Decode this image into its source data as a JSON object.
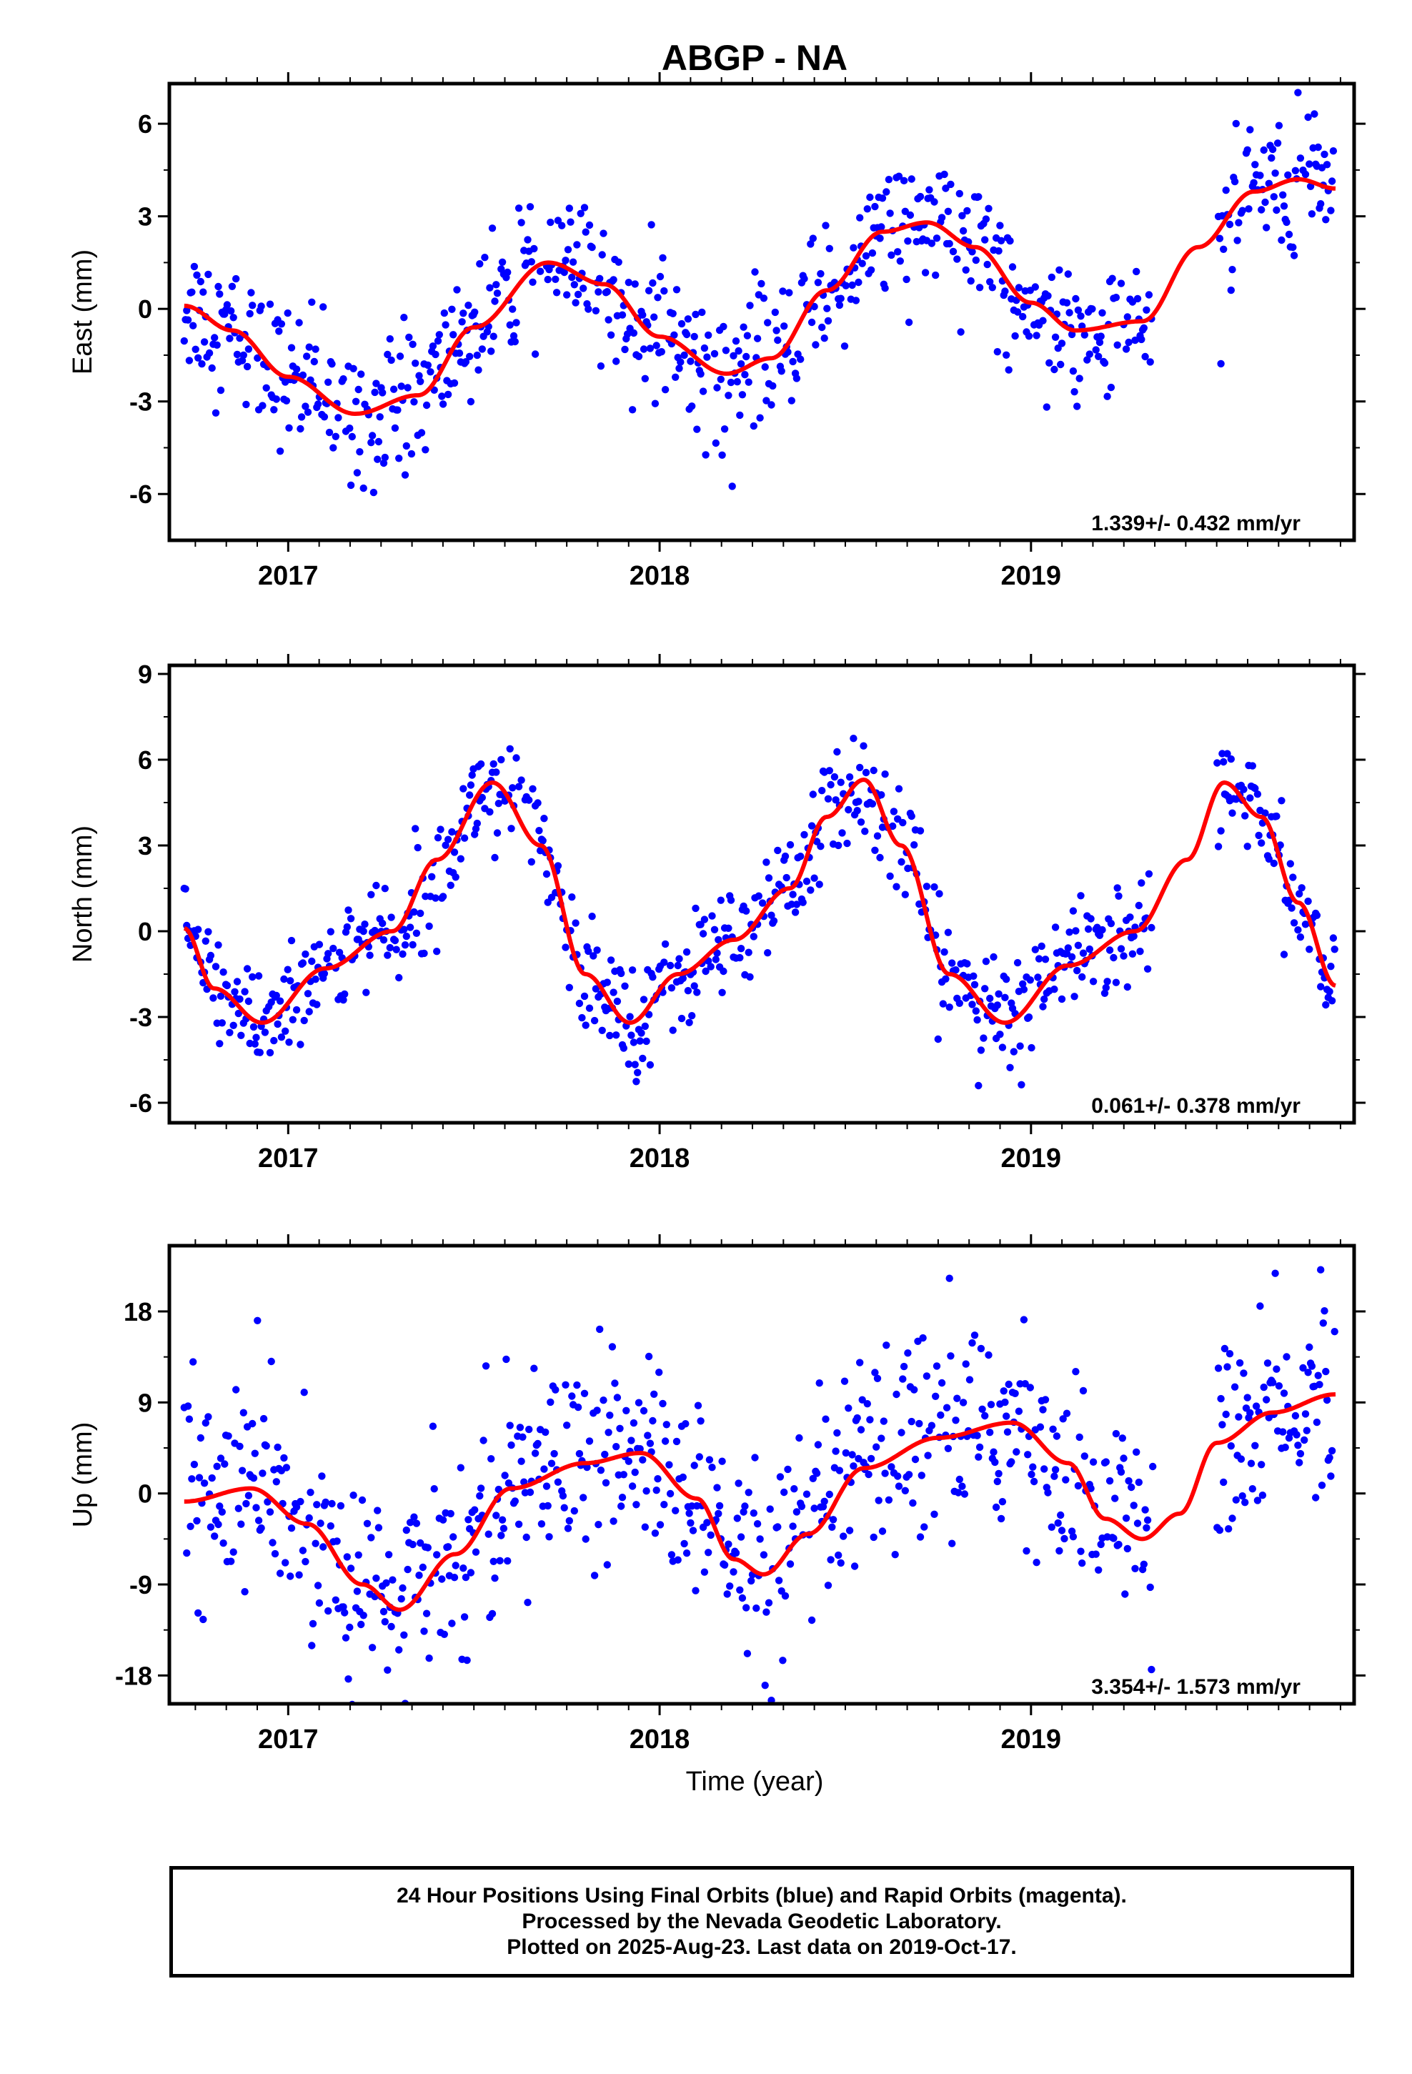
{
  "title": "ABGP - NA",
  "colors": {
    "points": "#0000ff",
    "fit": "#ff0000",
    "frame": "#000000"
  },
  "xaxis": {
    "label": "Time (year)",
    "range": [
      2016.68,
      2019.87
    ],
    "ticks": [
      2017,
      2018,
      2019
    ],
    "tick_labels": [
      "2017",
      "2018",
      "2019"
    ]
  },
  "chart_data": [
    {
      "type": "scatter",
      "title": "",
      "ylabel": "East (mm)",
      "ylim": [
        -7.5,
        7.3
      ],
      "yticks": [
        -6,
        -3,
        0,
        3,
        6
      ],
      "ytick_labels": [
        "-6",
        "-3",
        "0",
        "3",
        "6"
      ],
      "rate": "1.339+/- 0.432 mm/yr",
      "fit": {
        "name": "model",
        "x": [
          2016.72,
          2016.85,
          2017.0,
          2017.18,
          2017.35,
          2017.5,
          2017.7,
          2017.85,
          2018.0,
          2018.18,
          2018.3,
          2018.45,
          2018.6,
          2018.72,
          2018.85,
          2019.0,
          2019.12,
          2019.3,
          2019.45,
          2019.6,
          2019.72,
          2019.82
        ],
        "y": [
          0.1,
          -0.7,
          -2.2,
          -3.4,
          -2.8,
          -0.6,
          1.5,
          0.8,
          -0.9,
          -2.1,
          -1.6,
          0.6,
          2.5,
          2.8,
          2.0,
          0.2,
          -0.7,
          -0.4,
          2.0,
          3.8,
          4.2,
          3.9
        ]
      },
      "scatter_noise": 1.1,
      "gap": [
        2019.33,
        2019.5
      ]
    },
    {
      "type": "scatter",
      "title": "",
      "ylabel": "North (mm)",
      "ylim": [
        -6.7,
        9.3
      ],
      "yticks": [
        -6,
        -3,
        0,
        3,
        6,
        9
      ],
      "ytick_labels": [
        "-6",
        "-3",
        "0",
        "3",
        "6",
        "9"
      ],
      "rate": "0.061+/- 0.378 mm/yr",
      "fit": {
        "name": "model",
        "x": [
          2016.72,
          2016.8,
          2016.93,
          2017.1,
          2017.28,
          2017.4,
          2017.55,
          2017.68,
          2017.8,
          2017.92,
          2018.05,
          2018.2,
          2018.35,
          2018.45,
          2018.55,
          2018.65,
          2018.78,
          2018.93,
          2019.1,
          2019.28,
          2019.42,
          2019.52,
          2019.62,
          2019.72,
          2019.82
        ],
        "y": [
          0.1,
          -2.0,
          -3.2,
          -1.3,
          0.0,
          2.5,
          5.2,
          3.0,
          -1.5,
          -3.2,
          -1.5,
          -0.3,
          1.5,
          4.0,
          5.3,
          3.0,
          -1.5,
          -3.2,
          -1.2,
          0.0,
          2.5,
          5.2,
          4.0,
          1.0,
          -1.9
        ]
      },
      "scatter_noise": 0.95,
      "gap": [
        2019.33,
        2019.5
      ]
    },
    {
      "type": "scatter",
      "title": "",
      "ylabel": "Up (mm)",
      "ylim": [
        -20.8,
        24.5
      ],
      "yticks": [
        -18,
        -9,
        0,
        9,
        18
      ],
      "ytick_labels": [
        "-18",
        "-9",
        "0",
        "9",
        "18"
      ],
      "rate": "3.354+/- 1.573 mm/yr",
      "fit": {
        "name": "model",
        "x": [
          2016.72,
          2016.9,
          2017.05,
          2017.2,
          2017.3,
          2017.45,
          2017.6,
          2017.8,
          2017.95,
          2018.1,
          2018.2,
          2018.28,
          2018.4,
          2018.55,
          2018.75,
          2018.95,
          2019.1,
          2019.2,
          2019.3,
          2019.4,
          2019.5,
          2019.65,
          2019.82
        ],
        "y": [
          -0.8,
          0.5,
          -3.0,
          -9.0,
          -11.5,
          -6.0,
          0.5,
          3.0,
          4.0,
          -0.5,
          -6.5,
          -8.0,
          -4.0,
          2.5,
          5.5,
          7.0,
          3.0,
          -2.5,
          -4.5,
          -2.0,
          5.0,
          8.0,
          9.8
        ]
      },
      "scatter_noise": 5.0,
      "gap": [
        2019.33,
        2019.5
      ]
    }
  ],
  "footer": {
    "line1": "24 Hour Positions Using Final Orbits (blue) and Rapid Orbits (magenta).",
    "line2": "Processed by the Nevada Geodetic Laboratory.",
    "line3": "Plotted on 2025-Aug-23. Last data on 2019-Oct-17."
  }
}
